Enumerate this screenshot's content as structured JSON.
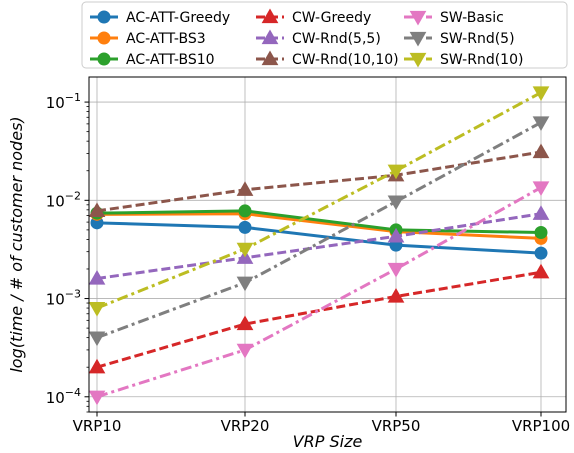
{
  "chart_data": {
    "type": "line",
    "xlabel": "VRP Size",
    "ylabel": "log(time / # of customer nodes)",
    "categories": [
      "VRP10",
      "VRP20",
      "VRP50",
      "VRP100"
    ],
    "yscale": "log",
    "ylim": [
      7e-05,
      0.18
    ],
    "y_ticks": [
      {
        "value": 0.0001,
        "base": "10",
        "exp": "−4"
      },
      {
        "value": 0.001,
        "base": "10",
        "exp": "−3"
      },
      {
        "value": 0.01,
        "base": "10",
        "exp": "−2"
      },
      {
        "value": 0.1,
        "base": "10",
        "exp": "−1"
      }
    ],
    "grid": true,
    "legend_position": "top",
    "series": [
      {
        "name": "AC-ATT-Greedy",
        "color": "#1f77b4",
        "dash": "solid",
        "marker": "circle",
        "values": [
          0.0059,
          0.0053,
          0.0035,
          0.0029
        ]
      },
      {
        "name": "AC-ATT-BS3",
        "color": "#ff7f0e",
        "dash": "solid",
        "marker": "circle",
        "values": [
          0.0072,
          0.0073,
          0.0048,
          0.0041
        ]
      },
      {
        "name": "AC-ATT-BS10",
        "color": "#2ca02c",
        "dash": "solid",
        "marker": "circle",
        "values": [
          0.0074,
          0.0078,
          0.005,
          0.0047
        ]
      },
      {
        "name": "CW-Greedy",
        "color": "#d62728",
        "dash": "dashed",
        "marker": "triangle-up",
        "values": [
          0.0002,
          0.00055,
          0.00105,
          0.00185
        ]
      },
      {
        "name": "CW-Rnd(5,5)",
        "color": "#9467bd",
        "dash": "dashed",
        "marker": "triangle-up",
        "values": [
          0.0016,
          0.0026,
          0.0043,
          0.0073
        ]
      },
      {
        "name": "CW-Rnd(10,10)",
        "color": "#8c564b",
        "dash": "dashed",
        "marker": "triangle-up",
        "values": [
          0.0078,
          0.0128,
          0.018,
          0.031
        ]
      },
      {
        "name": "SW-Basic",
        "color": "#e377c2",
        "dash": "dashdot",
        "marker": "triangle-down",
        "values": [
          0.0001,
          0.0003,
          0.002,
          0.0135
        ]
      },
      {
        "name": "SW-Rnd(5)",
        "color": "#7f7f7f",
        "dash": "dashdot",
        "marker": "triangle-down",
        "values": [
          0.0004,
          0.00145,
          0.0097,
          0.062
        ]
      },
      {
        "name": "SW-Rnd(10)",
        "color": "#bcbd22",
        "dash": "dashdot",
        "marker": "triangle-down",
        "values": [
          0.0008,
          0.0032,
          0.02,
          0.125
        ]
      }
    ]
  }
}
